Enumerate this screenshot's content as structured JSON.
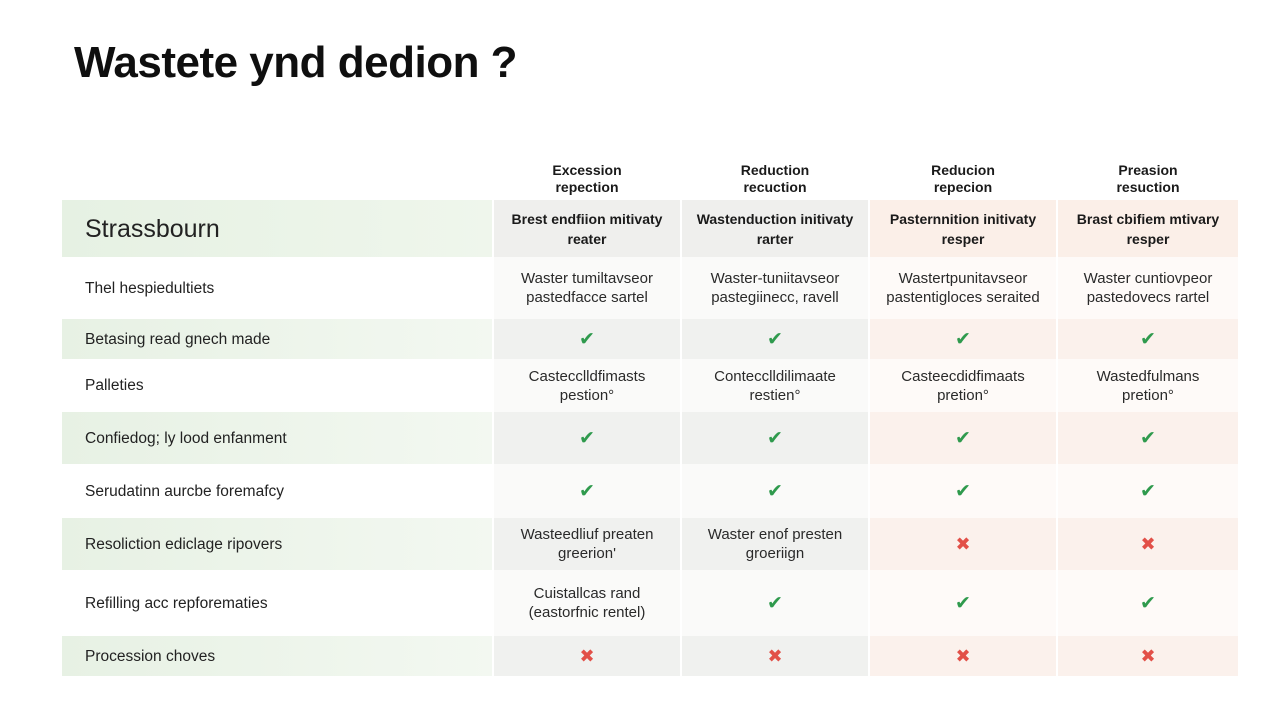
{
  "title": "Wastete ynd dedion ?",
  "columns": [
    "Excession\nrepection",
    "Reduction\nrecuction",
    "Reducion\nrepecion",
    "Preasion\nresuction"
  ],
  "subheader": {
    "label": "Strassbourn",
    "cells": [
      "Brest endfiion mitivaty\nreater",
      "Wastenduction initivaty\nrarter",
      "Pasternnition initivaty\nresper",
      "Brast cbifiem mtivary\nresper"
    ]
  },
  "rows": [
    {
      "label": "Thel hespiedultiets",
      "cells": [
        {
          "type": "text",
          "value": "Waster tumiltavseor\npastedfacce sartel"
        },
        {
          "type": "text",
          "value": "Waster-tuniitavseor\npastegiinecc, ravell"
        },
        {
          "type": "text",
          "value": "Wastertpunitavseor\npastentigloces seraited"
        },
        {
          "type": "text",
          "value": "Waster cuntiovpeor\npastedovecs rartel"
        }
      ]
    },
    {
      "label": "Betasing read gnech made",
      "cells": [
        {
          "type": "check"
        },
        {
          "type": "check"
        },
        {
          "type": "check"
        },
        {
          "type": "check"
        }
      ]
    },
    {
      "label": "Palleties",
      "cells": [
        {
          "type": "text",
          "value": "Castecclldfimasts\npestion°"
        },
        {
          "type": "text",
          "value": "Contecclldilimaate\nrestien°"
        },
        {
          "type": "text",
          "value": "Casteecdidfimaats\npretion°"
        },
        {
          "type": "text",
          "value": "Wastedfulmans\npretion°"
        }
      ]
    },
    {
      "label": "Confiedog; ly lood enfanment",
      "cells": [
        {
          "type": "check"
        },
        {
          "type": "check"
        },
        {
          "type": "check"
        },
        {
          "type": "check"
        }
      ]
    },
    {
      "label": "Serudatinn aurcbe foremafcy",
      "cells": [
        {
          "type": "check"
        },
        {
          "type": "check"
        },
        {
          "type": "check"
        },
        {
          "type": "check"
        }
      ]
    },
    {
      "label": "Resoliction ediclage ripovers",
      "cells": [
        {
          "type": "text",
          "value": "Wasteedliuf preaten\ngreerion'"
        },
        {
          "type": "text",
          "value": "Waster enof presten\ngroeriign"
        },
        {
          "type": "cross"
        },
        {
          "type": "cross"
        }
      ]
    },
    {
      "label": "Refilling acc repforematies",
      "cells": [
        {
          "type": "text",
          "value": "Cuistallcas rand\n(eastorfnic rentel)"
        },
        {
          "type": "check"
        },
        {
          "type": "check"
        },
        {
          "type": "check"
        }
      ]
    },
    {
      "label": "Procession choves",
      "cells": [
        {
          "type": "cross"
        },
        {
          "type": "cross"
        },
        {
          "type": "cross"
        },
        {
          "type": "cross"
        }
      ]
    }
  ],
  "colors": {
    "check": "#2f9a4d",
    "cross": "#e25048"
  }
}
